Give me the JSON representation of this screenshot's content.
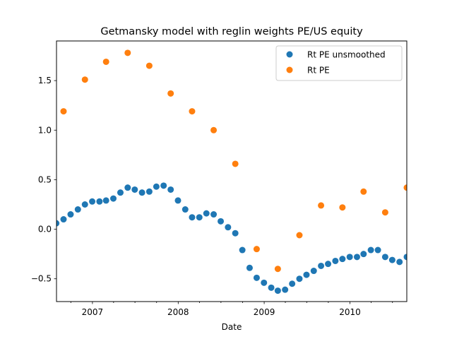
{
  "chart_data": {
    "type": "scatter",
    "title": "Getmansky model with reglin weights PE/US equity",
    "xlabel": "Date",
    "ylabel": "",
    "xlim": [
      "2006-08-01",
      "2010-08-31"
    ],
    "ylim": [
      -0.73,
      1.9
    ],
    "x_ticks": [
      {
        "date": "2007-01-01",
        "label": "2007"
      },
      {
        "date": "2008-01-01",
        "label": "2008"
      },
      {
        "date": "2009-01-01",
        "label": "2009"
      },
      {
        "date": "2010-01-01",
        "label": "2010"
      }
    ],
    "y_ticks": [
      {
        "value": -0.5,
        "label": "−0.5"
      },
      {
        "value": 0.0,
        "label": "0.0"
      },
      {
        "value": 0.5,
        "label": "0.5"
      },
      {
        "value": 1.0,
        "label": "1.0"
      },
      {
        "value": 1.5,
        "label": "1.5"
      }
    ],
    "grid": false,
    "legend_position": "top-right",
    "series": [
      {
        "name": "Rt PE unsmoothed",
        "color": "#1f77b4",
        "points": [
          [
            "2006-07-31",
            0.06
          ],
          [
            "2006-08-31",
            0.1
          ],
          [
            "2006-09-30",
            0.15
          ],
          [
            "2006-10-31",
            0.2
          ],
          [
            "2006-11-30",
            0.25
          ],
          [
            "2006-12-31",
            0.28
          ],
          [
            "2007-01-31",
            0.28
          ],
          [
            "2007-02-28",
            0.29
          ],
          [
            "2007-03-31",
            0.31
          ],
          [
            "2007-04-30",
            0.37
          ],
          [
            "2007-05-31",
            0.42
          ],
          [
            "2007-06-30",
            0.4
          ],
          [
            "2007-07-31",
            0.37
          ],
          [
            "2007-08-31",
            0.38
          ],
          [
            "2007-09-30",
            0.43
          ],
          [
            "2007-10-31",
            0.44
          ],
          [
            "2007-11-30",
            0.4
          ],
          [
            "2007-12-31",
            0.29
          ],
          [
            "2008-01-31",
            0.2
          ],
          [
            "2008-02-29",
            0.12
          ],
          [
            "2008-03-31",
            0.12
          ],
          [
            "2008-04-30",
            0.16
          ],
          [
            "2008-05-31",
            0.15
          ],
          [
            "2008-06-30",
            0.08
          ],
          [
            "2008-07-31",
            0.02
          ],
          [
            "2008-08-31",
            -0.04
          ],
          [
            "2008-09-30",
            -0.21
          ],
          [
            "2008-10-31",
            -0.39
          ],
          [
            "2008-11-30",
            -0.49
          ],
          [
            "2008-12-31",
            -0.54
          ],
          [
            "2009-01-31",
            -0.59
          ],
          [
            "2009-02-28",
            -0.62
          ],
          [
            "2009-03-31",
            -0.61
          ],
          [
            "2009-04-30",
            -0.55
          ],
          [
            "2009-05-31",
            -0.5
          ],
          [
            "2009-06-30",
            -0.46
          ],
          [
            "2009-07-31",
            -0.42
          ],
          [
            "2009-08-31",
            -0.37
          ],
          [
            "2009-09-30",
            -0.35
          ],
          [
            "2009-10-31",
            -0.32
          ],
          [
            "2009-11-30",
            -0.3
          ],
          [
            "2009-12-31",
            -0.28
          ],
          [
            "2010-01-31",
            -0.28
          ],
          [
            "2010-02-28",
            -0.25
          ],
          [
            "2010-03-31",
            -0.21
          ],
          [
            "2010-04-30",
            -0.21
          ],
          [
            "2010-05-31",
            -0.28
          ],
          [
            "2010-06-30",
            -0.31
          ],
          [
            "2010-07-31",
            -0.33
          ],
          [
            "2010-08-31",
            -0.28
          ]
        ]
      },
      {
        "name": "Rt PE",
        "color": "#ff7f0e",
        "points": [
          [
            "2006-08-31",
            1.19
          ],
          [
            "2006-11-30",
            1.51
          ],
          [
            "2007-02-28",
            1.69
          ],
          [
            "2007-05-31",
            1.78
          ],
          [
            "2007-08-31",
            1.65
          ],
          [
            "2007-11-30",
            1.37
          ],
          [
            "2008-02-29",
            1.19
          ],
          [
            "2008-05-31",
            1.0
          ],
          [
            "2008-08-31",
            0.66
          ],
          [
            "2008-11-30",
            -0.2
          ],
          [
            "2009-02-28",
            -0.4
          ],
          [
            "2009-05-31",
            -0.06
          ],
          [
            "2009-08-31",
            0.24
          ],
          [
            "2009-11-30",
            0.22
          ],
          [
            "2010-02-28",
            0.38
          ],
          [
            "2010-05-31",
            0.17
          ],
          [
            "2010-08-31",
            0.42
          ]
        ]
      }
    ]
  }
}
